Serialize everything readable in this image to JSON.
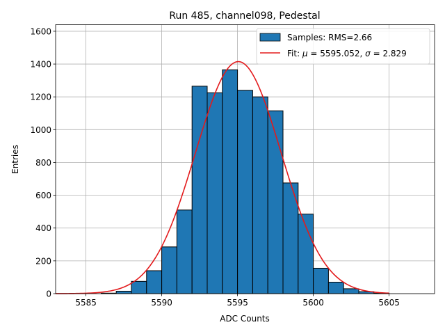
{
  "chart_data": {
    "type": "bar",
    "title": "Run 485, channel098, Pedestal",
    "xlabel": "ADC Counts",
    "ylabel": "Entries",
    "xlim": [
      5583,
      5608
    ],
    "ylim": [
      0,
      1640
    ],
    "xticks": [
      5585,
      5590,
      5595,
      5600,
      5605
    ],
    "yticks": [
      0,
      200,
      400,
      600,
      800,
      1000,
      1200,
      1400,
      1600
    ],
    "grid": true,
    "legend_position": "top-right",
    "histogram": {
      "name": "Samples: RMS=2.66",
      "color": "#1f77b4",
      "edge_color": "#000000",
      "bin_width": 1,
      "bins": [
        {
          "x": 5586,
          "count": 3
        },
        {
          "x": 5587,
          "count": 15
        },
        {
          "x": 5588,
          "count": 75
        },
        {
          "x": 5589,
          "count": 140
        },
        {
          "x": 5590,
          "count": 285
        },
        {
          "x": 5591,
          "count": 510
        },
        {
          "x": 5592,
          "count": 1265
        },
        {
          "x": 5593,
          "count": 1225
        },
        {
          "x": 5594,
          "count": 1365
        },
        {
          "x": 5595,
          "count": 1240
        },
        {
          "x": 5596,
          "count": 1200
        },
        {
          "x": 5597,
          "count": 1115
        },
        {
          "x": 5598,
          "count": 675
        },
        {
          "x": 5599,
          "count": 485
        },
        {
          "x": 5600,
          "count": 155
        },
        {
          "x": 5601,
          "count": 70
        },
        {
          "x": 5602,
          "count": 30
        },
        {
          "x": 5603,
          "count": 12
        },
        {
          "x": 5604,
          "count": 3
        }
      ]
    },
    "fit": {
      "name": "Fit: μ = 5595.052, σ = 2.829",
      "name_prefix": "Fit: ",
      "mu_symbol": "μ",
      "mu_text": " = 5595.052, ",
      "sigma_symbol": "σ",
      "sigma_text": " = 2.829",
      "color": "#e31a1c",
      "mu": 5595.052,
      "sigma": 2.829,
      "amplitude": 1415,
      "x_range": [
        5583,
        5605
      ]
    }
  }
}
